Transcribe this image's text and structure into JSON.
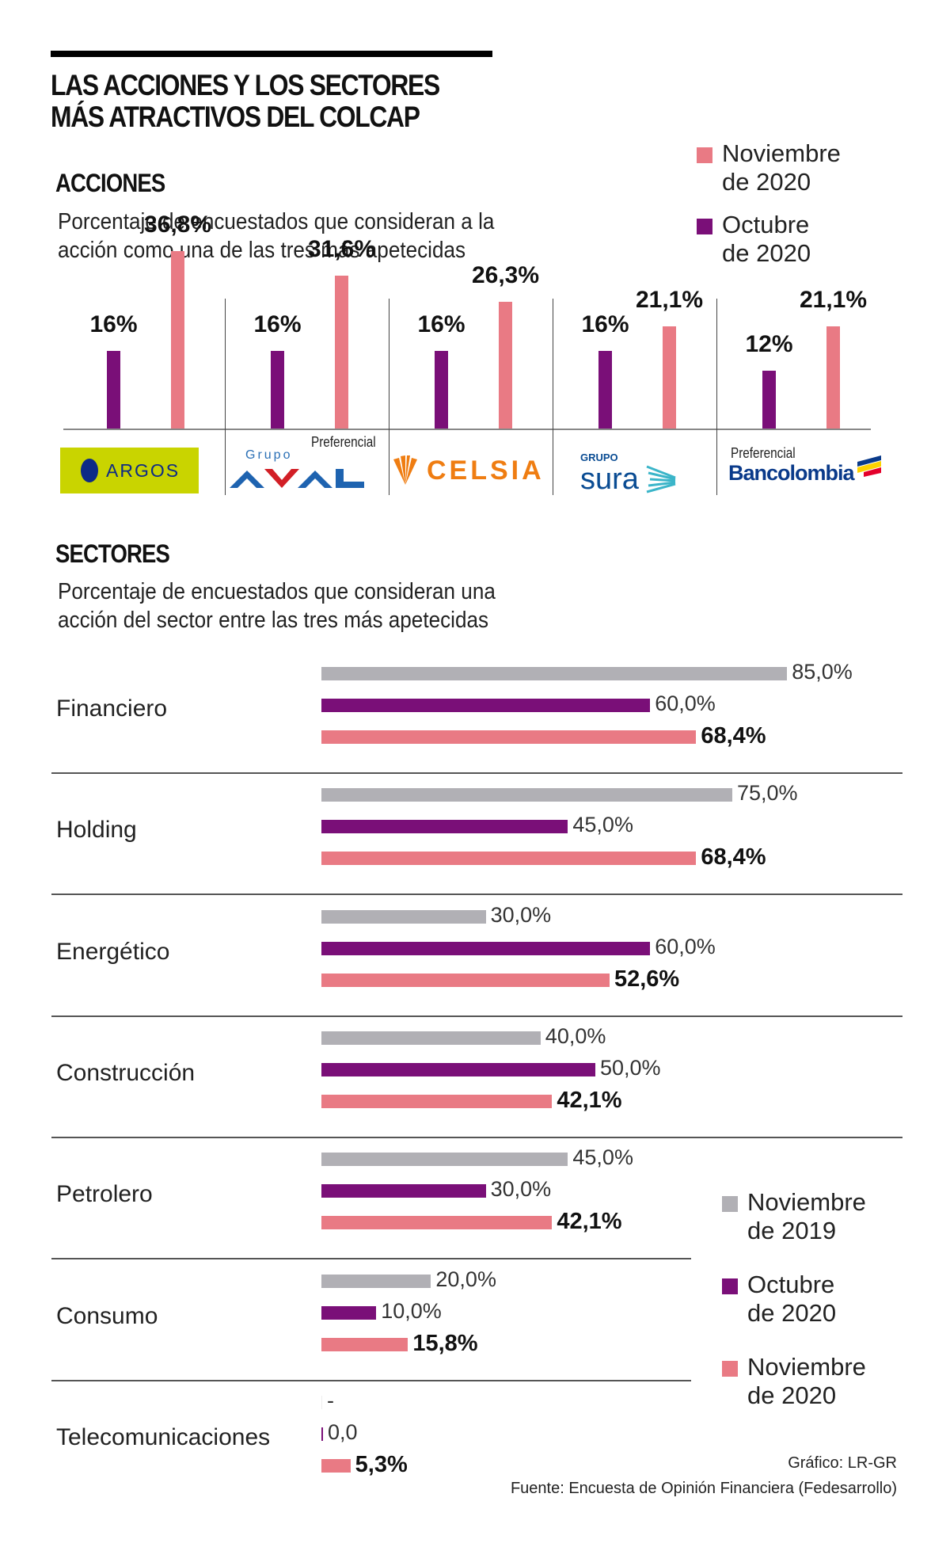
{
  "title": [
    "LAS ACCIONES Y LOS SECTORES",
    "MÁS ATRACTIVOS DEL COLCAP"
  ],
  "colors": {
    "nov2020": "#e97a84",
    "oct2020": "#7a0f78",
    "nov2019": "#b1b0b5",
    "axis": "#888888"
  },
  "acciones": {
    "heading": "ACCIONES",
    "subtitle": [
      "Porcentaje de encuestados que consideran a la",
      "acción como una de las tres más apetecidas"
    ],
    "legend": [
      {
        "label": [
          "Noviembre",
          "de 2020"
        ],
        "color_key": "nov2020"
      },
      {
        "label": [
          "Octubre",
          "de 2020"
        ],
        "color_key": "oct2020"
      }
    ]
  },
  "sectores": {
    "heading": "SECTORES",
    "subtitle": [
      "Porcentaje de encuestados que consideran una",
      "acción del sector entre las tres más apetecidas"
    ],
    "legend": [
      {
        "label": [
          "Noviembre",
          "de 2019"
        ],
        "color_key": "nov2019"
      },
      {
        "label": [
          "Octubre",
          "de 2020"
        ],
        "color_key": "oct2020"
      },
      {
        "label": [
          "Noviembre",
          "de 2020"
        ],
        "color_key": "nov2020"
      }
    ]
  },
  "chart_data": [
    {
      "type": "bar",
      "title": "ACCIONES",
      "subtitle": "Porcentaje de encuestados que consideran a la acción como una de las tres más apetecidas",
      "categories": [
        "Argos",
        "Grupo Aval Preferencial",
        "Celsia",
        "Grupo Sura",
        "Bancolombia Preferencial"
      ],
      "logos": [
        {
          "name": "ARGOS",
          "note": ""
        },
        {
          "name": "AVAL",
          "prefix": "Grupo",
          "note": "Preferencial"
        },
        {
          "name": "CELSIA",
          "note": ""
        },
        {
          "name": "sura",
          "prefix": "GRUPO",
          "note": ""
        },
        {
          "name": "Bancolombia",
          "note": "Preferencial"
        }
      ],
      "series": [
        {
          "name": "Octubre de 2020",
          "color_key": "oct2020",
          "values": [
            16,
            16,
            16,
            16,
            12
          ],
          "labels": [
            "16%",
            "16%",
            "16%",
            "16%",
            "12%"
          ]
        },
        {
          "name": "Noviembre de 2020",
          "color_key": "nov2020",
          "values": [
            36.8,
            31.6,
            26.3,
            21.1,
            21.1
          ],
          "labels": [
            "36,8%",
            "31,6%",
            "26,3%",
            "21,1%",
            "21,1%"
          ]
        }
      ],
      "legend": "top-right",
      "grid": false
    },
    {
      "type": "bar",
      "orientation": "horizontal",
      "title": "SECTORES",
      "subtitle": "Porcentaje de encuestados que consideran una acción del sector entre las tres más apetecidas",
      "categories": [
        "Financiero",
        "Holding",
        "Energético",
        "Construcción",
        "Petrolero",
        "Consumo",
        "Telecomunicaciones"
      ],
      "series": [
        {
          "name": "Noviembre de 2019",
          "color_key": "nov2019",
          "values": [
            85.0,
            75.0,
            30.0,
            40.0,
            45.0,
            20.0,
            null
          ],
          "labels": [
            "85,0%",
            "75,0%",
            "30,0%",
            "40,0%",
            "45,0%",
            "20,0%",
            "-"
          ]
        },
        {
          "name": "Octubre de 2020",
          "color_key": "oct2020",
          "values": [
            60.0,
            45.0,
            60.0,
            50.0,
            30.0,
            10.0,
            0.0
          ],
          "labels": [
            "60,0%",
            "45,0%",
            "60,0%",
            "50,0%",
            "30,0%",
            "10,0%",
            "0,0"
          ]
        },
        {
          "name": "Noviembre de 2020",
          "color_key": "nov2020",
          "values": [
            68.4,
            68.4,
            52.6,
            42.1,
            42.1,
            15.8,
            5.3
          ],
          "labels": [
            "68,4%",
            "68,4%",
            "52,6%",
            "42,1%",
            "42,1%",
            "15,8%",
            "5,3%"
          ]
        }
      ],
      "legend": "bottom-right",
      "grid": false
    }
  ],
  "footer": {
    "credit": "Gráfico: LR-GR",
    "source": "Fuente: Encuesta de Opinión Financiera (Fedesarrollo)"
  }
}
